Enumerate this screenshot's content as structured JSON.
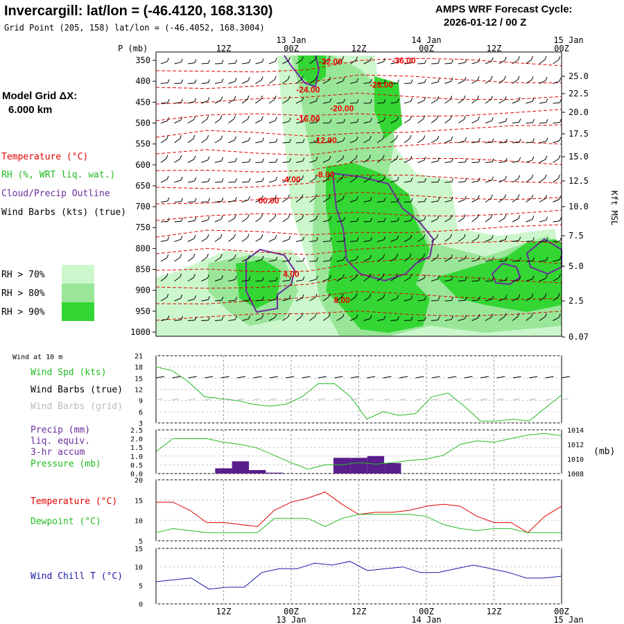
{
  "header": {
    "title": "Invercargill:  lat/lon = (-46.4120, 168.3130)",
    "grid_point": "Grid Point (205, 158) lat/lon = (-46.4052, 168.3004)",
    "cycle_label": "AMPS WRF Forecast Cycle:",
    "cycle_value": "2026-01-12 / 00  Z"
  },
  "left_legend": {
    "model_grid": "Model Grid ΔX:",
    "model_grid_value": "6.000 km",
    "temperature": "Temperature (°C)",
    "rh": "RH (%, WRT liq. wat.)",
    "cloud": "Cloud/Precip Outline",
    "wind": "Wind Barbs (kts) (true)",
    "rh_levels": [
      "RH > 70%",
      "RH > 80%",
      "RH > 90%"
    ],
    "rh_colors": [
      "#ccf7cc",
      "#99e699",
      "#33d633"
    ]
  },
  "colors": {
    "temperature": "#e00000",
    "cloud": "#6a2c9e",
    "green": "#22bb22",
    "precip": "#5a1d8c",
    "windchill": "#1a1aaa",
    "grid": "#999999"
  },
  "time_axis": {
    "hours": [
      0,
      12,
      24,
      36,
      48,
      60,
      72
    ],
    "top_labels": [
      "",
      "12Z",
      "00Z",
      "12Z",
      "00Z",
      "12Z",
      "00Z"
    ],
    "dates": [
      {
        "h": 24,
        "text": "13 Jan"
      },
      {
        "h": 48,
        "text": "14 Jan"
      },
      {
        "h": 72,
        "text": "15 Jan"
      }
    ],
    "bottom_labels": [
      "",
      "12Z",
      "00Z",
      "12Z",
      "00Z",
      "12Z",
      "00Z"
    ]
  },
  "chart_data": [
    {
      "type": "contour-cross-section",
      "title": "Time-height cross section",
      "ylabel": "P (mb)",
      "y_ticks": [
        350,
        400,
        450,
        500,
        550,
        600,
        650,
        700,
        750,
        800,
        850,
        900,
        950,
        1000
      ],
      "right_axis_label": "Kft MSL",
      "right_ticks": [
        "25.0",
        "22.5",
        "20.0",
        "17.5",
        "15.0",
        "12.5",
        "10.0",
        "7.5",
        "5.0",
        "2.5",
        "0.07"
      ],
      "temperature_labels": [
        {
          "text": "-32.00",
          "h": 31,
          "p": 360
        },
        {
          "text": "-36.00",
          "h": 44,
          "p": 357
        },
        {
          "text": "-28.00",
          "h": 40,
          "p": 415
        },
        {
          "text": "-24.00",
          "h": 27,
          "p": 427
        },
        {
          "text": "-20.00",
          "h": 33,
          "p": 472
        },
        {
          "text": "-16.00",
          "h": 27,
          "p": 497
        },
        {
          "text": "-12.00",
          "h": 30,
          "p": 548
        },
        {
          "text": "-8.00",
          "h": 30,
          "p": 630
        },
        {
          "text": "-4.00",
          "h": 24,
          "p": 642
        },
        {
          "text": "00.00",
          "h": 20,
          "p": 692
        },
        {
          "text": "4.00",
          "h": 24,
          "p": 868
        },
        {
          "text": "8.00",
          "h": 33,
          "p": 930
        }
      ],
      "rh_threshold_pct": [
        70,
        80,
        90
      ]
    },
    {
      "type": "line",
      "title": "Wind at 10 m",
      "series": [
        {
          "name": "Wind Spd (kts)",
          "values": [
            18,
            17,
            14,
            10,
            9.5,
            9,
            8,
            7.5,
            8,
            10,
            13.5,
            13.5,
            10,
            4,
            6,
            5,
            5.5,
            10,
            11,
            7.5,
            3.5,
            3.5,
            4,
            3.5,
            7,
            10.5
          ]
        }
      ],
      "legend": [
        "Wind Spd (kts)",
        "Wind Barbs (true)",
        "Wind Barbs (grid)"
      ],
      "ylim": [
        3,
        21
      ],
      "y_ticks": [
        3,
        6,
        9,
        12,
        15,
        18,
        21
      ]
    },
    {
      "type": "line+bar",
      "series": [
        {
          "name": "Precip (mm)",
          "values": [
            {
              "h": 12,
              "v": 0.3
            },
            {
              "h": 15,
              "v": 0.7
            },
            {
              "h": 18,
              "v": 0.2
            },
            {
              "h": 21,
              "v": 0.05
            },
            {
              "h": 27,
              "v": 0.0
            },
            {
              "h": 30,
              "v": 0.0
            },
            {
              "h": 33,
              "v": 0.9
            },
            {
              "h": 36,
              "v": 0.9
            },
            {
              "h": 39,
              "v": 1.0
            },
            {
              "h": 42,
              "v": 0.6
            }
          ]
        },
        {
          "name": "Pressure (mb)",
          "values": [
            1011,
            1012.8,
            1012.8,
            1012.8,
            1012.3,
            1012,
            1011.5,
            1010.5,
            1009.5,
            1008.6,
            1009.2,
            1009.2,
            1009.5,
            1009.3,
            1009.5,
            1009.8,
            1010,
            1010.5,
            1012,
            1012.5,
            1012.3,
            1012.8,
            1013.3,
            1013.5,
            1013.2
          ]
        }
      ],
      "legend": [
        "Precip (mm)",
        "liq. equiv.",
        "3-hr accum",
        "Pressure (mb)"
      ],
      "ylim_left": [
        0,
        2.5
      ],
      "y_ticks_left": [
        "0.0",
        "0.5",
        "1.0",
        "1.5",
        "2.0",
        "2.5"
      ],
      "ylim_right": [
        1008,
        1014
      ],
      "y_ticks_right": [
        "1008",
        "1010",
        "1012",
        "1014"
      ],
      "right_label": "(mb)"
    },
    {
      "type": "line",
      "series": [
        {
          "name": "Temperature (°C)",
          "values": [
            14.5,
            14.5,
            12.5,
            9.5,
            9.5,
            9,
            8.5,
            12.5,
            14.5,
            15.5,
            17,
            14,
            11.5,
            12,
            12,
            12.5,
            13.5,
            14,
            13.5,
            11,
            9.5,
            9.5,
            7,
            11,
            13.5
          ]
        },
        {
          "name": "Dewpoint (°C)",
          "values": [
            7,
            8,
            7.5,
            7,
            7,
            7,
            7,
            10.5,
            10.5,
            10.5,
            8.5,
            10.5,
            11.5,
            11.5,
            11.5,
            11.5,
            11,
            9,
            8,
            7.5,
            8,
            8,
            7,
            7,
            7
          ]
        }
      ],
      "ylim": [
        5,
        20
      ],
      "y_ticks": [
        5,
        10,
        15,
        20
      ]
    },
    {
      "type": "line",
      "series": [
        {
          "name": "Wind Chill T (°C)",
          "values": [
            6,
            6.5,
            7,
            4,
            4.5,
            4.5,
            8.5,
            9.5,
            9.5,
            11,
            10.5,
            11.5,
            9,
            9.5,
            10,
            8.5,
            8.5,
            9.5,
            10.5,
            9.5,
            8.5,
            7,
            7,
            7.5
          ]
        }
      ],
      "ylim": [
        0,
        15
      ],
      "y_ticks": [
        0,
        5,
        10,
        15
      ]
    }
  ],
  "panel_labels": {
    "wind_title": "Wind at 10 m"
  }
}
